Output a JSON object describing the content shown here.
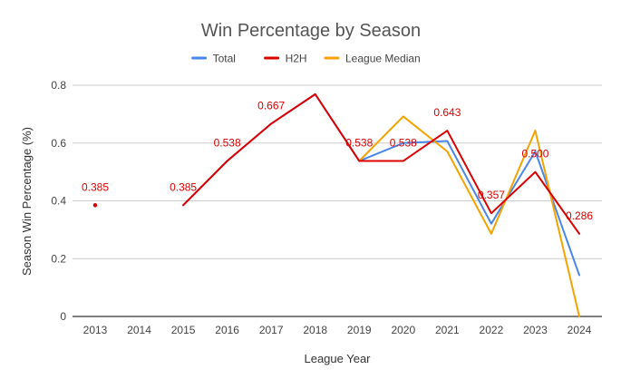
{
  "chart_data": {
    "type": "line",
    "title": "Win Percentage by Season",
    "xlabel": "League Year",
    "ylabel": "Season Win Percentage (%)",
    "ylim": [
      0,
      0.8
    ],
    "yticks": [
      "0",
      "0.2",
      "0.4",
      "0.6",
      "0.8"
    ],
    "grid": true,
    "legend_position": "top-center",
    "categories": [
      "2013",
      "2014",
      "2015",
      "2016",
      "2017",
      "2018",
      "2019",
      "2020",
      "2021",
      "2022",
      "2023",
      "2024"
    ],
    "series": [
      {
        "name": "Total",
        "color": "#4a86e8",
        "values": [
          0.385,
          null,
          0.385,
          0.538,
          0.667,
          0.769,
          0.538,
          0.6,
          0.607,
          0.321,
          0.571,
          0.143
        ]
      },
      {
        "name": "H2H",
        "color": "#dd0000",
        "values": [
          0.385,
          null,
          0.385,
          0.538,
          0.667,
          0.769,
          0.538,
          0.538,
          0.643,
          0.357,
          0.5,
          0.286
        ]
      },
      {
        "name": "League Median",
        "color": "#f6a200",
        "values": [
          null,
          null,
          null,
          null,
          null,
          null,
          0.538,
          0.692,
          0.571,
          0.286,
          0.643,
          0.0
        ]
      }
    ],
    "data_labels": {
      "series": "H2H",
      "color": "#dd0000",
      "points": [
        {
          "index": 0,
          "text": "0.385"
        },
        {
          "index": 2,
          "text": "0.385"
        },
        {
          "index": 3,
          "text": "0.538"
        },
        {
          "index": 4,
          "text": "0.667"
        },
        {
          "index": 6,
          "text": "0.538"
        },
        {
          "index": 7,
          "text": "0.538"
        },
        {
          "index": 8,
          "text": "0.643"
        },
        {
          "index": 9,
          "text": "0.357"
        },
        {
          "index": 10,
          "text": "0.500"
        },
        {
          "index": 11,
          "text": "0.286"
        }
      ]
    }
  }
}
